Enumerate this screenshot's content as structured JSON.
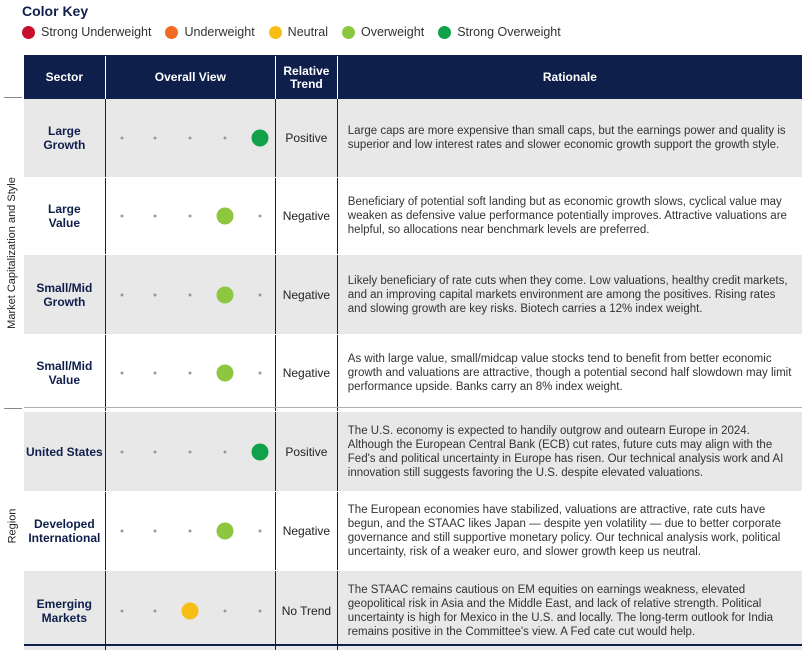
{
  "color_key": {
    "title": "Color Key",
    "items": [
      {
        "label": "Strong Underweight",
        "color": "#c8102e"
      },
      {
        "label": "Underweight",
        "color": "#f26a21"
      },
      {
        "label": "Neutral",
        "color": "#f7be16"
      },
      {
        "label": "Overweight",
        "color": "#8dc63f"
      },
      {
        "label": "Strong Overweight",
        "color": "#12a14b"
      }
    ]
  },
  "headers": {
    "sector": "Sector",
    "overall_view": "Overall View",
    "relative_trend_line1": "Relative",
    "relative_trend_line2": "Trend",
    "rationale": "Rationale"
  },
  "groups": {
    "market_cap": "Market Capitalization and Style",
    "region": "Region"
  },
  "rows": [
    {
      "sector_line1": "Large",
      "sector_line2": "Growth",
      "view": 4,
      "trend": "Positive",
      "rationale": "Large caps are more expensive than small caps, but the earnings power and quality is superior and low interest rates and slower economic growth support the growth style."
    },
    {
      "sector_line1": "Large",
      "sector_line2": "Value",
      "view": 3,
      "trend": "Negative",
      "rationale": "Beneficiary of potential soft landing but as economic growth slows, cyclical value may weaken as defensive value performance potentially improves. Attractive valuations are helpful, so allocations near benchmark levels are preferred."
    },
    {
      "sector_line1": "Small/Mid",
      "sector_line2": "Growth",
      "view": 3,
      "trend": "Negative",
      "rationale": "Likely beneficiary of rate cuts when they come. Low valuations, healthy credit markets, and an improving capital markets environment are among the positives. Rising rates and slowing growth are key risks. Biotech carries a 12% index weight."
    },
    {
      "sector_line1": "Small/Mid",
      "sector_line2": "Value",
      "view": 3,
      "trend": "Negative",
      "rationale": "As with large value, small/midcap value stocks tend to benefit from better economic growth and valuations are attractive, though a potential second half slowdown may limit performance upside. Banks carry an 8% index weight."
    },
    {
      "sector_line1": "United States",
      "sector_line2": "",
      "view": 4,
      "trend": "Positive",
      "rationale": "The U.S. economy is expected to handily outgrow and outearn Europe in 2024. Although the European Central Bank (ECB) cut rates, future cuts may align with the Fed's and political uncertainty in Europe has risen. Our technical analysis work and AI innovation still suggests favoring the U.S. despite elevated valuations."
    },
    {
      "sector_line1": "Developed",
      "sector_line2": "International",
      "view": 3,
      "trend": "Negative",
      "rationale": "The European economies have stabilized, valuations are attractive, rate cuts have begun, and the STAAC likes Japan — despite yen volatility — due to better corporate governance and still supportive monetary policy. Our technical analysis work, political uncertainty, risk of a weaker euro, and slower growth keep us neutral."
    },
    {
      "sector_line1": "Emerging",
      "sector_line2": "Markets",
      "view": 2,
      "trend": "No Trend",
      "rationale": "The STAAC remains cautious on EM equities on earnings weakness, elevated geopolitical risk in Asia and the Middle East, and lack of relative strength. Political uncertainty is high for Mexico in the U.S. and locally. The long-term outlook for India remains positive in the Committee's view. A Fed cate cut would help."
    }
  ]
}
